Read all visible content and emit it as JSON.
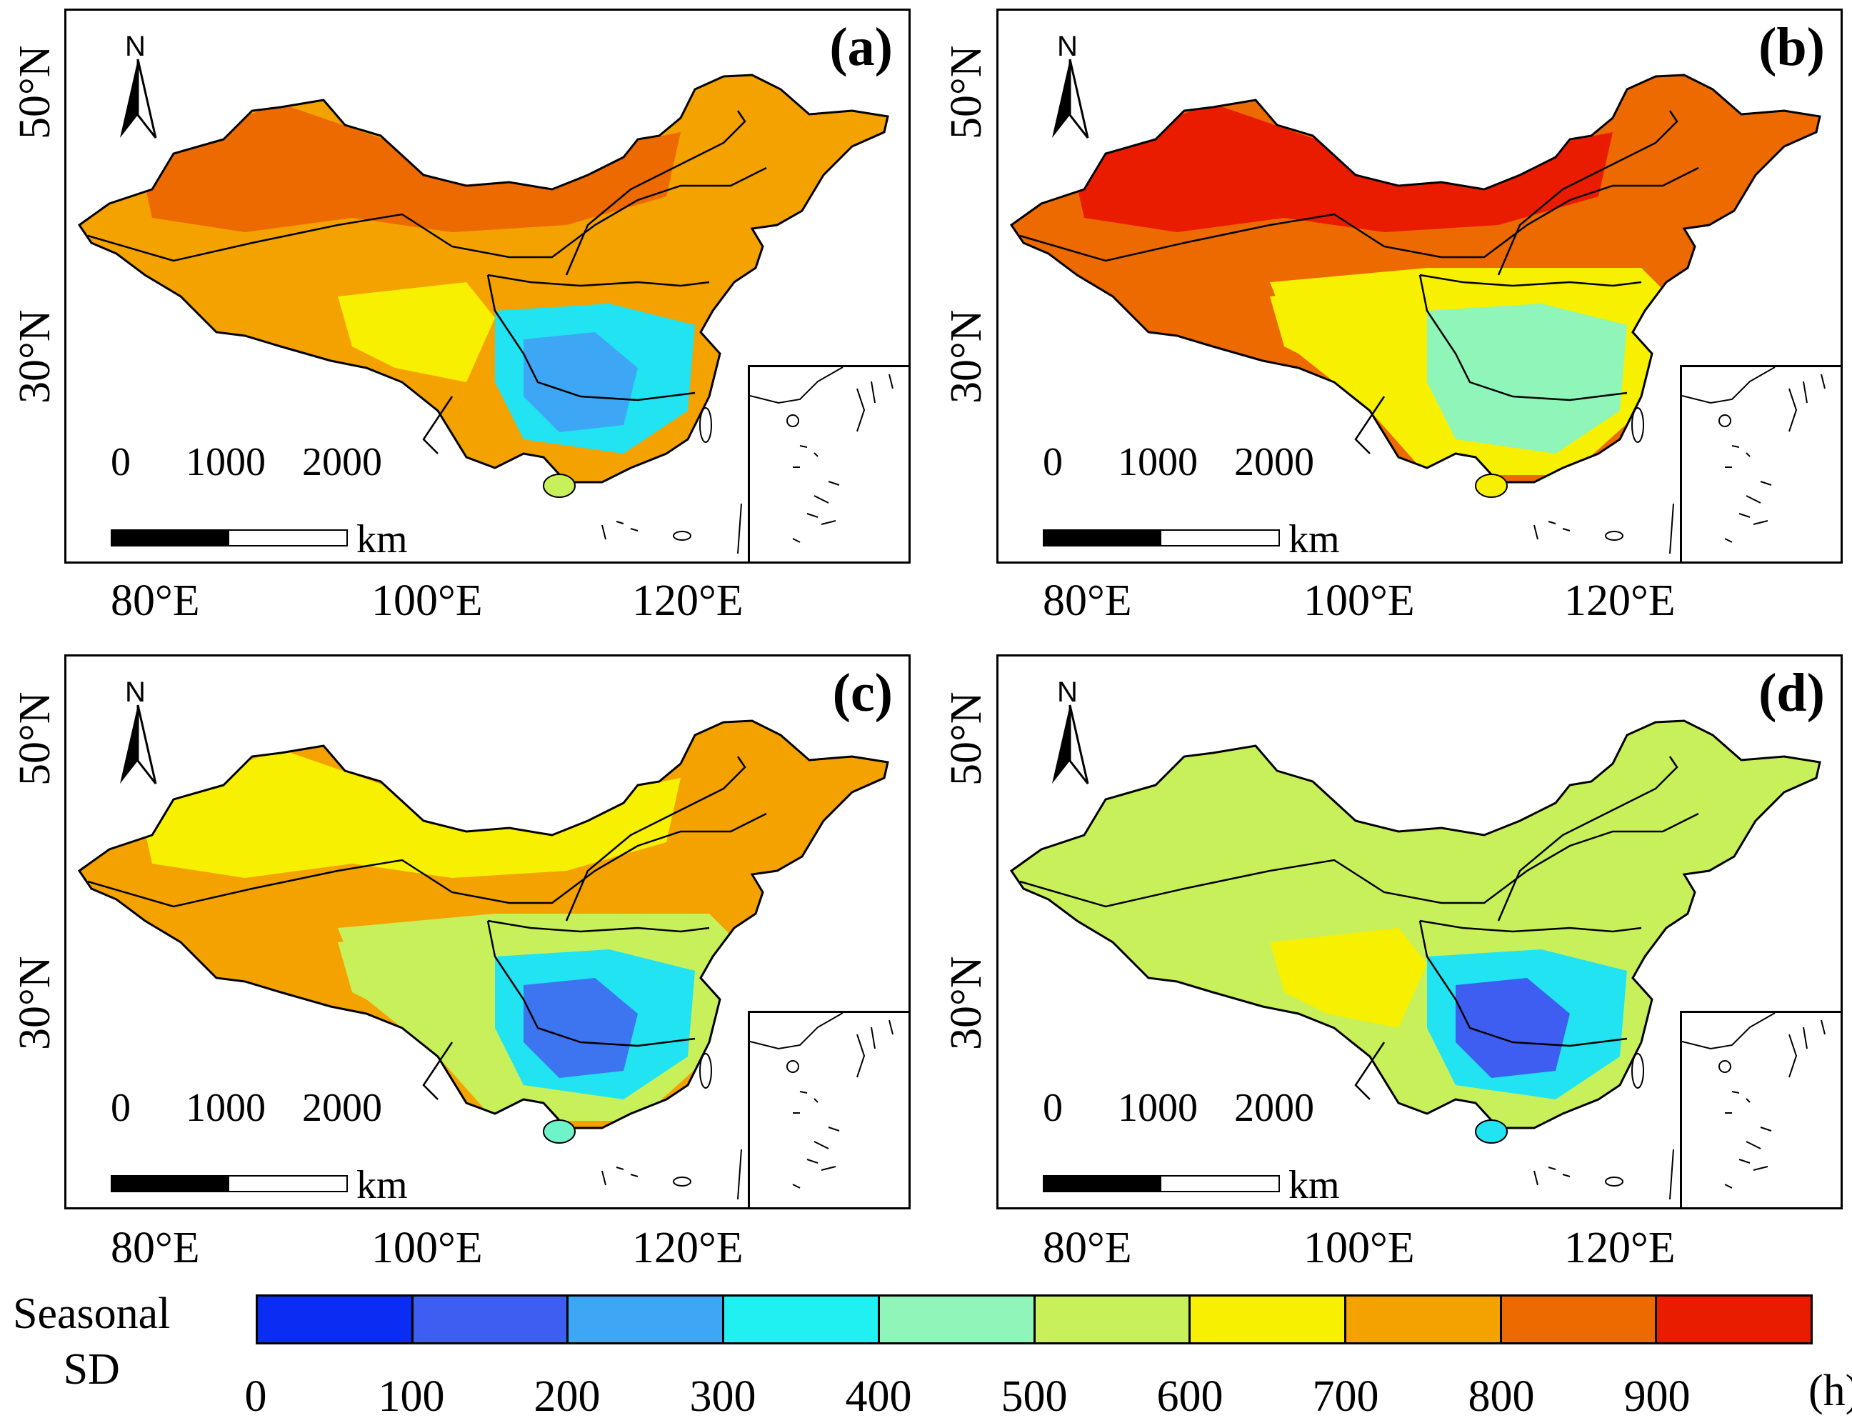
{
  "panels": [
    {
      "label": "(a)",
      "colors": {
        "base": "#f3a200",
        "north": "#ec6a00",
        "south": "#f7f000",
        "east": "#f3a200",
        "blob": "#21e3f2",
        "blob2": "#3da7f5",
        "hainan": "#c8f05a"
      }
    },
    {
      "label": "(b)",
      "colors": {
        "base": "#ec6a00",
        "north": "#ea1c00",
        "south": "#f7f000",
        "east": "#f7f000",
        "blob": "#8ff5b8",
        "blob2": "#8ff5b8",
        "hainan": "#f7f000"
      }
    },
    {
      "label": "(c)",
      "colors": {
        "base": "#f3a200",
        "north": "#f7f000",
        "south": "#c8f05a",
        "east": "#c8f05a",
        "blob": "#21e3f2",
        "blob2": "#3d75f0",
        "hainan": "#6ff3c8"
      }
    },
    {
      "label": "(d)",
      "colors": {
        "base": "#c8f05a",
        "north": "#c8f05a",
        "south": "#f7f000",
        "east": "#c8f05a",
        "blob": "#21e3f2",
        "blob2": "#3d5ef0",
        "hainan": "#21e3f2"
      }
    }
  ],
  "map_text": {
    "north_letter": "N",
    "scale_labels": [
      "0",
      "1000",
      "2000"
    ],
    "scale_unit": "km",
    "x_ticks": [
      "80°E",
      "100°E",
      "120°E"
    ],
    "y_ticks": [
      "50°N",
      "30°N"
    ]
  },
  "legend": {
    "title_line1": "Seasonal",
    "title_line2": "SD",
    "unit": "(h)",
    "bins": [
      {
        "label": "0",
        "color": "#0b2cf2"
      },
      {
        "label": "100",
        "color": "#3d5ef0"
      },
      {
        "label": "200",
        "color": "#3da7f5"
      },
      {
        "label": "300",
        "color": "#21f0f2"
      },
      {
        "label": "400",
        "color": "#8ff5b8"
      },
      {
        "label": "500",
        "color": "#c8f05a"
      },
      {
        "label": "600",
        "color": "#f7f000"
      },
      {
        "label": "700",
        "color": "#f3a200"
      },
      {
        "label": "800",
        "color": "#ec6a00"
      },
      {
        "label": "900",
        "color": "#ea1c00"
      }
    ]
  }
}
